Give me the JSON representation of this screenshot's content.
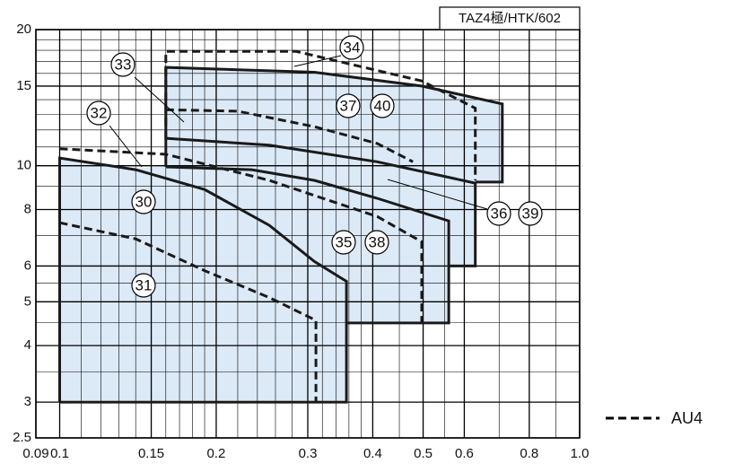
{
  "chart_data": {
    "type": "region",
    "header": "TAZ4極/HTK/602",
    "log_x": true,
    "log_y": true,
    "grid": true,
    "xlim": [
      0.09,
      1.0
    ],
    "ylim": [
      2.5,
      20
    ],
    "xticks": [
      0.09,
      0.1,
      0.15,
      0.2,
      0.3,
      0.4,
      0.5,
      0.6,
      0.8,
      {
        "value": 1,
        "label": "1.0"
      }
    ],
    "yticks": [
      2.5,
      3,
      4,
      5,
      6,
      8,
      10,
      15,
      20
    ],
    "xgrid_minor": [
      0.11,
      0.12,
      0.13,
      0.14,
      0.16,
      0.17,
      0.18,
      0.19,
      0.22,
      0.24,
      0.26,
      0.28,
      0.32,
      0.34,
      0.36,
      0.38,
      0.45,
      0.55,
      0.7,
      0.9
    ],
    "ygrid_minor": [
      3.5,
      4.5,
      5.5,
      7,
      9,
      11,
      12,
      13,
      14,
      16,
      17,
      18,
      19
    ],
    "series": [
      {
        "style": "solid",
        "x": [
          0.1,
          0.1,
          0.14,
          0.19,
          0.253,
          0.309,
          0.356,
          0.356,
          0.1
        ],
        "y": [
          3,
          10.4,
          9.8,
          8.86,
          7.38,
          6.14,
          5.55,
          3,
          3
        ]
      },
      {
        "style": "dashed",
        "x": [
          0.1,
          0.14,
          0.19,
          0.253,
          0.311,
          0.311
        ],
        "y": [
          7.48,
          6.89,
          5.86,
          5.11,
          4.55,
          3
        ]
      },
      {
        "style": "dashed",
        "x": [
          0.1,
          0.16,
          0.253,
          0.408,
          0.497,
          0.497
        ],
        "y": [
          10.9,
          10.6,
          9.28,
          7.72,
          6.79,
          4.49
        ]
      },
      {
        "style": "solid",
        "x": [
          0.16,
          0.234,
          0.309,
          0.408,
          0.56,
          0.56,
          0.356
        ],
        "y": [
          9.94,
          9.8,
          9.28,
          8.47,
          7.55,
          4.49,
          4.49
        ]
      },
      {
        "style": "solid",
        "x": [
          0.16,
          0.253,
          0.408,
          0.63,
          0.63,
          0.56
        ],
        "y": [
          11.5,
          11.1,
          10.2,
          9.15,
          6.0,
          6.0
        ]
      },
      {
        "style": "dashed",
        "x": [
          0.16,
          0.22,
          0.309,
          0.408,
          0.478
        ],
        "y": [
          13.3,
          13.2,
          12.2,
          11.2,
          10.2
        ]
      },
      {
        "style": "dashed",
        "x": [
          0.16,
          0.16,
          0.285,
          0.497,
          0.63,
          0.63
        ],
        "y": [
          11.5,
          17.9,
          17.9,
          15.4,
          13.4,
          9.28
        ]
      },
      {
        "style": "solid",
        "x": [
          0.16,
          0.16,
          0.309,
          0.497,
          0.71,
          0.71,
          0.63
        ],
        "y": [
          9.94,
          16.5,
          16.1,
          15.0,
          13.7,
          9.2,
          9.2
        ]
      }
    ],
    "annotations": [
      "30",
      "31",
      "32",
      "33",
      "34",
      "35",
      "38",
      "36",
      "39",
      "37",
      "40"
    ],
    "legend": {
      "label": "AU4",
      "style": "dashed"
    }
  }
}
